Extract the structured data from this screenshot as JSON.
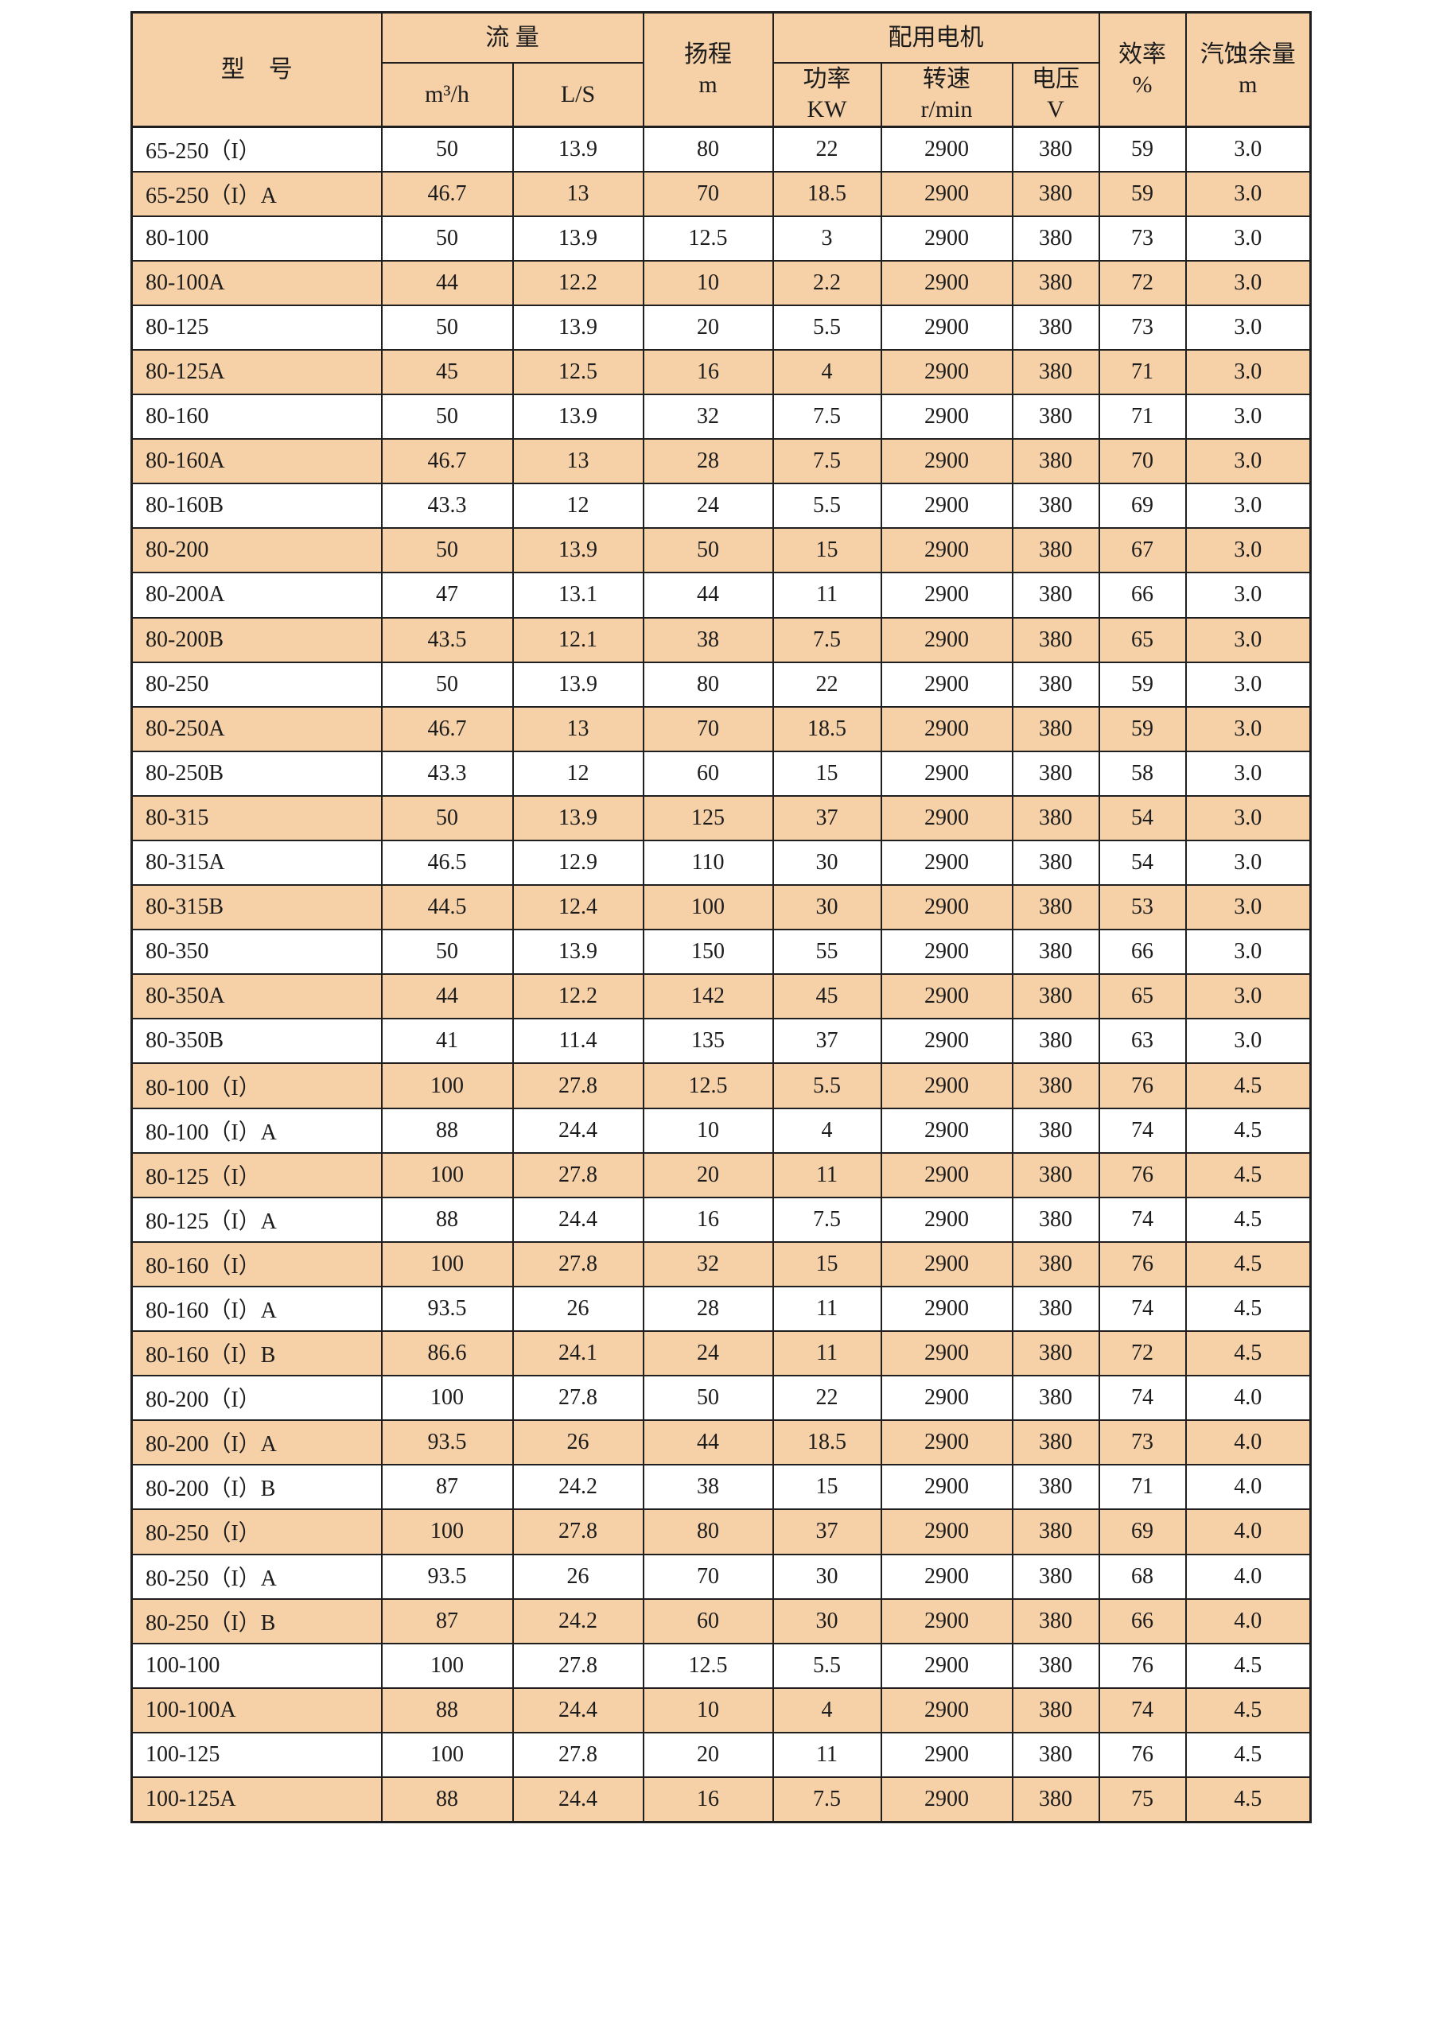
{
  "page": {
    "background": "#ffffff"
  },
  "table": {
    "colors": {
      "header_and_alt_row_fill": "#f6d0a7",
      "row_fill": "#ffffff",
      "border": "#1f1f1f",
      "text": "#1c1c1c"
    },
    "header": {
      "model": "型　号",
      "flow": {
        "title": "流 量",
        "unit_m3h": "m³/h",
        "unit_ls": "L/S"
      },
      "head": {
        "line1": "扬程",
        "line2": "m"
      },
      "motor": {
        "title": "配用电机",
        "power_line1": "功率",
        "power_line2": "KW",
        "speed_line1": "转速",
        "speed_line2": "r/min",
        "voltage_line1": "电压",
        "voltage_line2": "V"
      },
      "efficiency": {
        "line1": "效率",
        "line2": "%"
      },
      "npsh": {
        "line1": "汽蚀余量",
        "line2": "m"
      }
    },
    "columns": [
      "model",
      "flow_m3h",
      "flow_ls",
      "head_m",
      "power_kw",
      "speed_rpm",
      "voltage_v",
      "efficiency_pct",
      "npsh_m"
    ],
    "rows": [
      [
        "65-250（I）",
        "50",
        "13.9",
        "80",
        "22",
        "2900",
        "380",
        "59",
        "3.0"
      ],
      [
        "65-250（I）A",
        "46.7",
        "13",
        "70",
        "18.5",
        "2900",
        "380",
        "59",
        "3.0"
      ],
      [
        "80-100",
        "50",
        "13.9",
        "12.5",
        "3",
        "2900",
        "380",
        "73",
        "3.0"
      ],
      [
        "80-100A",
        "44",
        "12.2",
        "10",
        "2.2",
        "2900",
        "380",
        "72",
        "3.0"
      ],
      [
        "80-125",
        "50",
        "13.9",
        "20",
        "5.5",
        "2900",
        "380",
        "73",
        "3.0"
      ],
      [
        "80-125A",
        "45",
        "12.5",
        "16",
        "4",
        "2900",
        "380",
        "71",
        "3.0"
      ],
      [
        "80-160",
        "50",
        "13.9",
        "32",
        "7.5",
        "2900",
        "380",
        "71",
        "3.0"
      ],
      [
        "80-160A",
        "46.7",
        "13",
        "28",
        "7.5",
        "2900",
        "380",
        "70",
        "3.0"
      ],
      [
        "80-160B",
        "43.3",
        "12",
        "24",
        "5.5",
        "2900",
        "380",
        "69",
        "3.0"
      ],
      [
        "80-200",
        "50",
        "13.9",
        "50",
        "15",
        "2900",
        "380",
        "67",
        "3.0"
      ],
      [
        "80-200A",
        "47",
        "13.1",
        "44",
        "11",
        "2900",
        "380",
        "66",
        "3.0"
      ],
      [
        "80-200B",
        "43.5",
        "12.1",
        "38",
        "7.5",
        "2900",
        "380",
        "65",
        "3.0"
      ],
      [
        "80-250",
        "50",
        "13.9",
        "80",
        "22",
        "2900",
        "380",
        "59",
        "3.0"
      ],
      [
        "80-250A",
        "46.7",
        "13",
        "70",
        "18.5",
        "2900",
        "380",
        "59",
        "3.0"
      ],
      [
        "80-250B",
        "43.3",
        "12",
        "60",
        "15",
        "2900",
        "380",
        "58",
        "3.0"
      ],
      [
        "80-315",
        "50",
        "13.9",
        "125",
        "37",
        "2900",
        "380",
        "54",
        "3.0"
      ],
      [
        "80-315A",
        "46.5",
        "12.9",
        "110",
        "30",
        "2900",
        "380",
        "54",
        "3.0"
      ],
      [
        "80-315B",
        "44.5",
        "12.4",
        "100",
        "30",
        "2900",
        "380",
        "53",
        "3.0"
      ],
      [
        "80-350",
        "50",
        "13.9",
        "150",
        "55",
        "2900",
        "380",
        "66",
        "3.0"
      ],
      [
        "80-350A",
        "44",
        "12.2",
        "142",
        "45",
        "2900",
        "380",
        "65",
        "3.0"
      ],
      [
        "80-350B",
        "41",
        "11.4",
        "135",
        "37",
        "2900",
        "380",
        "63",
        "3.0"
      ],
      [
        "80-100（I）",
        "100",
        "27.8",
        "12.5",
        "5.5",
        "2900",
        "380",
        "76",
        "4.5"
      ],
      [
        "80-100（I）A",
        "88",
        "24.4",
        "10",
        "4",
        "2900",
        "380",
        "74",
        "4.5"
      ],
      [
        "80-125（I）",
        "100",
        "27.8",
        "20",
        "11",
        "2900",
        "380",
        "76",
        "4.5"
      ],
      [
        "80-125（I）A",
        "88",
        "24.4",
        "16",
        "7.5",
        "2900",
        "380",
        "74",
        "4.5"
      ],
      [
        "80-160（I）",
        "100",
        "27.8",
        "32",
        "15",
        "2900",
        "380",
        "76",
        "4.5"
      ],
      [
        "80-160（I）A",
        "93.5",
        "26",
        "28",
        "11",
        "2900",
        "380",
        "74",
        "4.5"
      ],
      [
        "80-160（I）B",
        "86.6",
        "24.1",
        "24",
        "11",
        "2900",
        "380",
        "72",
        "4.5"
      ],
      [
        "80-200（I）",
        "100",
        "27.8",
        "50",
        "22",
        "2900",
        "380",
        "74",
        "4.0"
      ],
      [
        "80-200（I）A",
        "93.5",
        "26",
        "44",
        "18.5",
        "2900",
        "380",
        "73",
        "4.0"
      ],
      [
        "80-200（I）B",
        "87",
        "24.2",
        "38",
        "15",
        "2900",
        "380",
        "71",
        "4.0"
      ],
      [
        "80-250（I）",
        "100",
        "27.8",
        "80",
        "37",
        "2900",
        "380",
        "69",
        "4.0"
      ],
      [
        "80-250（I）A",
        "93.5",
        "26",
        "70",
        "30",
        "2900",
        "380",
        "68",
        "4.0"
      ],
      [
        "80-250（I）B",
        "87",
        "24.2",
        "60",
        "30",
        "2900",
        "380",
        "66",
        "4.0"
      ],
      [
        "100-100",
        "100",
        "27.8",
        "12.5",
        "5.5",
        "2900",
        "380",
        "76",
        "4.5"
      ],
      [
        "100-100A",
        "88",
        "24.4",
        "10",
        "4",
        "2900",
        "380",
        "74",
        "4.5"
      ],
      [
        "100-125",
        "100",
        "27.8",
        "20",
        "11",
        "2900",
        "380",
        "76",
        "4.5"
      ],
      [
        "100-125A",
        "88",
        "24.4",
        "16",
        "7.5",
        "2900",
        "380",
        "75",
        "4.5"
      ]
    ]
  }
}
